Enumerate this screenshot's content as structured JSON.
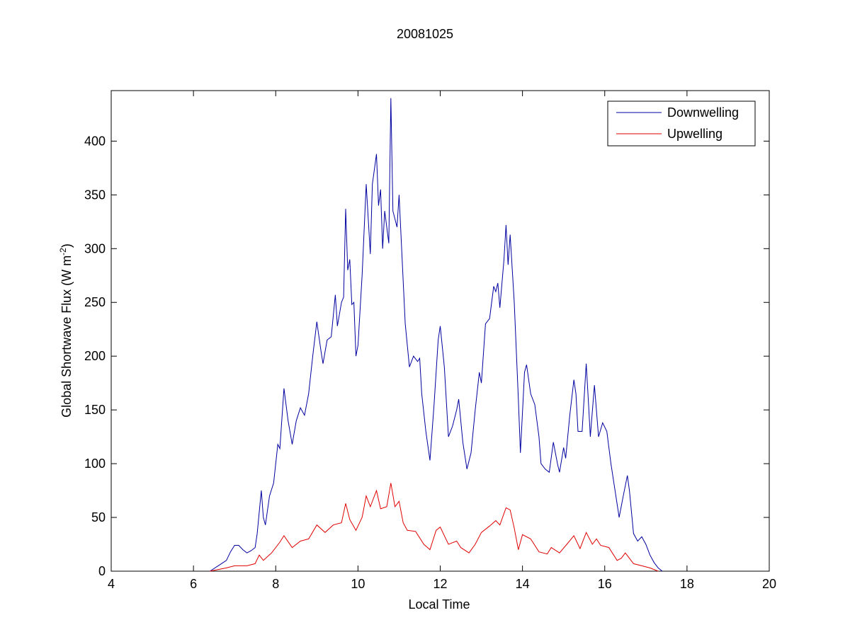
{
  "chart_data": {
    "type": "line",
    "title": "20081025",
    "xlabel": "Local Time",
    "ylabel": [
      "Global Shortwave Flux (W m",
      "-2",
      ")"
    ],
    "xlim": [
      4,
      20
    ],
    "xticks": [
      4,
      6,
      8,
      10,
      12,
      14,
      16,
      18,
      20
    ],
    "ylim": [
      0,
      447
    ],
    "yticks": [
      0,
      50,
      100,
      150,
      200,
      250,
      300,
      350,
      400
    ],
    "legend": "upper right",
    "series": [
      {
        "name": "Downwelling",
        "color": "#0000a0",
        "x": [
          6.4,
          6.6,
          6.8,
          6.9,
          7.0,
          7.1,
          7.2,
          7.3,
          7.4,
          7.5,
          7.55,
          7.65,
          7.7,
          7.75,
          7.85,
          7.95,
          8.05,
          8.1,
          8.2,
          8.3,
          8.4,
          8.5,
          8.6,
          8.7,
          8.8,
          8.9,
          9.0,
          9.1,
          9.15,
          9.25,
          9.35,
          9.45,
          9.5,
          9.6,
          9.65,
          9.7,
          9.75,
          9.8,
          9.85,
          9.9,
          9.95,
          10.0,
          10.1,
          10.2,
          10.3,
          10.35,
          10.45,
          10.5,
          10.55,
          10.6,
          10.65,
          10.75,
          10.8,
          10.85,
          10.95,
          11.0,
          11.05,
          11.15,
          11.25,
          11.35,
          11.45,
          11.5,
          11.55,
          11.65,
          11.75,
          11.85,
          11.95,
          12.0,
          12.1,
          12.2,
          12.3,
          12.4,
          12.45,
          12.55,
          12.65,
          12.75,
          12.85,
          12.95,
          13.0,
          13.1,
          13.2,
          13.3,
          13.35,
          13.4,
          13.45,
          13.55,
          13.6,
          13.65,
          13.7,
          13.8,
          13.9,
          13.95,
          14.05,
          14.1,
          14.2,
          14.3,
          14.4,
          14.45,
          14.55,
          14.65,
          14.75,
          14.85,
          14.9,
          15.0,
          15.05,
          15.15,
          15.25,
          15.3,
          15.35,
          15.45,
          15.55,
          15.6,
          15.65,
          15.75,
          15.85,
          15.95,
          16.05,
          16.15,
          16.25,
          16.35,
          16.45,
          16.55,
          16.6,
          16.7,
          16.8,
          16.9,
          17.0,
          17.1,
          17.2,
          17.3,
          17.4
        ],
        "values": [
          0,
          5,
          10,
          18,
          24,
          24,
          20,
          17,
          19,
          22,
          35,
          75,
          50,
          43,
          70,
          82,
          118,
          114,
          170,
          140,
          118,
          140,
          152,
          145,
          165,
          200,
          232,
          205,
          193,
          215,
          218,
          257,
          228,
          250,
          255,
          337,
          280,
          290,
          248,
          250,
          200,
          210,
          275,
          360,
          295,
          360,
          388,
          340,
          355,
          300,
          335,
          305,
          440,
          335,
          320,
          350,
          310,
          230,
          190,
          200,
          195,
          198,
          165,
          130,
          103,
          155,
          215,
          228,
          190,
          125,
          135,
          150,
          160,
          120,
          95,
          110,
          150,
          185,
          175,
          230,
          235,
          265,
          260,
          268,
          245,
          290,
          322,
          285,
          313,
          250,
          160,
          110,
          185,
          192,
          165,
          155,
          125,
          100,
          95,
          92,
          120,
          100,
          92,
          115,
          105,
          145,
          178,
          165,
          130,
          130,
          193,
          160,
          125,
          173,
          125,
          138,
          130,
          100,
          75,
          50,
          70,
          89,
          75,
          35,
          28,
          32,
          25,
          15,
          8,
          3,
          0
        ]
      },
      {
        "name": "Upwelling",
        "color": "#e00000",
        "x": [
          6.4,
          6.8,
          7.0,
          7.3,
          7.5,
          7.6,
          7.7,
          7.9,
          8.1,
          8.2,
          8.4,
          8.6,
          8.8,
          9.0,
          9.2,
          9.4,
          9.6,
          9.7,
          9.8,
          9.95,
          10.1,
          10.2,
          10.3,
          10.45,
          10.55,
          10.7,
          10.8,
          10.9,
          11.0,
          11.1,
          11.2,
          11.4,
          11.6,
          11.75,
          11.9,
          12.0,
          12.2,
          12.4,
          12.5,
          12.7,
          12.85,
          13.0,
          13.2,
          13.35,
          13.45,
          13.6,
          13.7,
          13.8,
          13.9,
          14.0,
          14.2,
          14.4,
          14.6,
          14.7,
          14.9,
          15.1,
          15.25,
          15.4,
          15.55,
          15.7,
          15.8,
          15.9,
          16.1,
          16.3,
          16.4,
          16.5,
          16.7,
          16.9,
          17.1,
          17.3
        ],
        "values": [
          0,
          3,
          5,
          5,
          7,
          15,
          10,
          17,
          27,
          33,
          22,
          28,
          30,
          43,
          36,
          43,
          45,
          63,
          48,
          38,
          50,
          70,
          60,
          75,
          58,
          60,
          82,
          60,
          65,
          45,
          38,
          37,
          25,
          20,
          38,
          41,
          25,
          28,
          22,
          17,
          25,
          36,
          42,
          47,
          43,
          59,
          57,
          40,
          20,
          34,
          30,
          18,
          16,
          22,
          17,
          26,
          33,
          21,
          36,
          25,
          30,
          24,
          22,
          10,
          12,
          17,
          7,
          5,
          3,
          0
        ]
      }
    ]
  }
}
